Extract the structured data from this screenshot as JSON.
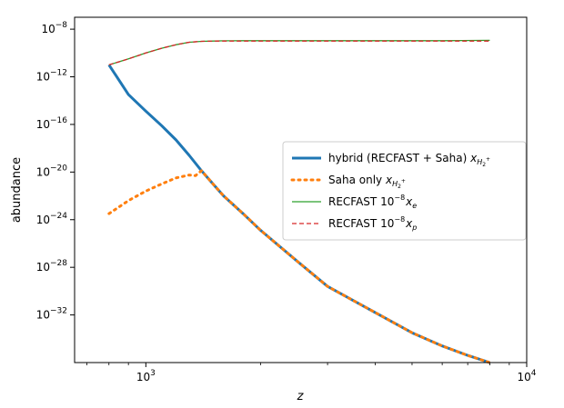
{
  "chart_data": {
    "type": "line",
    "xscale": "log",
    "yscale": "log",
    "xlim": [
      650,
      10000
    ],
    "ylim": [
      1e-36,
      1e-07
    ],
    "xlabel": "z",
    "ylabel": "abundance",
    "x_ticks": [
      {
        "value": 1000,
        "base": "10",
        "exp": "3"
      },
      {
        "value": 10000,
        "base": "10",
        "exp": "4"
      }
    ],
    "y_ticks": [
      {
        "value": 1e-08,
        "base": "10",
        "exp": "−8"
      },
      {
        "value": 1e-12,
        "base": "10",
        "exp": "−12"
      },
      {
        "value": 1e-16,
        "base": "10",
        "exp": "−16"
      },
      {
        "value": 1e-20,
        "base": "10",
        "exp": "−20"
      },
      {
        "value": 1e-24,
        "base": "10",
        "exp": "−24"
      },
      {
        "value": 1e-28,
        "base": "10",
        "exp": "−28"
      },
      {
        "value": 1e-32,
        "base": "10",
        "exp": "−32"
      }
    ],
    "grid": false,
    "legend_position": "center-right",
    "series": [
      {
        "name": "hybrid (RECFAST + Saha) x_H2+",
        "legend": {
          "main": "hybrid (RECFAST + Saha) ",
          "var": "x",
          "sub": "H",
          "subsub": "2",
          "subsup": "+",
          "sup": ""
        },
        "color": "#1f77b4",
        "style": "solid",
        "width": 3,
        "x": [
          800,
          900,
          1000,
          1100,
          1200,
          1300,
          1400,
          1500,
          1600,
          1800,
          2000,
          2500,
          3000,
          4000,
          5000,
          6000,
          7000,
          8000
        ],
        "y": [
          1e-11,
          3.2e-14,
          1.3e-15,
          7.9e-17,
          5e-18,
          2.5e-19,
          1.3e-20,
          1e-21,
          1e-22,
          3.2e-24,
          1.3e-25,
          3.2e-28,
          2.5e-30,
          1.6e-32,
          3.2e-34,
          2.5e-35,
          4e-36,
          1e-36
        ]
      },
      {
        "name": "Saha only x_H2+",
        "legend": {
          "main": "Saha only ",
          "var": "x",
          "sub": "H",
          "subsub": "2",
          "subsup": "+",
          "sup": ""
        },
        "color": "#ff7f0e",
        "style": "dotted",
        "width": 3,
        "x": [
          800,
          900,
          1000,
          1100,
          1200,
          1300,
          1350,
          1400,
          1500,
          1600,
          1800,
          2000,
          2500,
          3000,
          4000,
          5000,
          6000,
          7000,
          8000
        ],
        "y": [
          3.2e-24,
          4e-23,
          2.5e-22,
          1e-21,
          3.2e-21,
          5.6e-21,
          5e-21,
          1.3e-20,
          1e-21,
          1e-22,
          3.2e-24,
          1.3e-25,
          3.2e-28,
          2.5e-30,
          1.6e-32,
          3.2e-34,
          2.5e-35,
          4e-36,
          1e-36
        ]
      },
      {
        "name": "RECFAST 10^-8 x_e",
        "legend": {
          "main": "RECFAST ",
          "var": "x",
          "sub": "e",
          "subsub": "",
          "subsup": "",
          "sup": "−8",
          "pre": "10"
        },
        "color": "#2ca02c",
        "style": "solid",
        "width": 1.3,
        "x": [
          800,
          900,
          1000,
          1100,
          1200,
          1300,
          1400,
          1500,
          1600,
          1800,
          2000,
          3000,
          4000,
          6000,
          8000
        ],
        "y": [
          1e-11,
          3.2e-11,
          1e-10,
          2.5e-10,
          5e-10,
          7.9e-10,
          9.5e-10,
          1e-09,
          1.05e-09,
          1.08e-09,
          1.08e-09,
          1.08e-09,
          1.08e-09,
          1.08e-09,
          1.16e-09
        ]
      },
      {
        "name": "RECFAST 10^-8 x_p",
        "legend": {
          "main": "RECFAST ",
          "var": "x",
          "sub": "p",
          "subsub": "",
          "subsup": "",
          "sup": "−8",
          "pre": "10"
        },
        "color": "#d62728",
        "style": "dashed",
        "width": 1.3,
        "x": [
          800,
          900,
          1000,
          1100,
          1200,
          1300,
          1400,
          1500,
          1600,
          1800,
          2000,
          3000,
          4000,
          6000,
          8000
        ],
        "y": [
          1e-11,
          3.2e-11,
          1e-10,
          2.5e-10,
          5e-10,
          7.9e-10,
          9.5e-10,
          1e-09,
          1e-09,
          1e-09,
          1e-09,
          1e-09,
          1e-09,
          1e-09,
          1e-09
        ]
      }
    ]
  }
}
